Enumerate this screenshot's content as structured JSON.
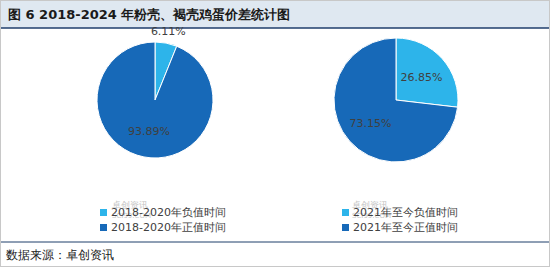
{
  "title": "图 6 2018-2024 年粉壳、褐壳鸡蛋价差统计图",
  "source": "数据来源：卓创资讯",
  "chart_data": [
    {
      "type": "pie",
      "categories": [
        "2018-2020年负值时间",
        "2018-2020年正值时间"
      ],
      "values": [
        6.11,
        93.89
      ],
      "value_labels": [
        "6.11%",
        "93.89%"
      ],
      "colors": [
        "#2db4ea",
        "#1769b8"
      ],
      "data_labels": true,
      "legend": "bottom",
      "annotations": [
        "卓创资讯",
        "SCI99.COM"
      ]
    },
    {
      "type": "pie",
      "categories": [
        "2021年至今负值时间",
        "2021年至今正值时间"
      ],
      "values": [
        26.85,
        73.15
      ],
      "value_labels": [
        "26.85%",
        "73.15%"
      ],
      "colors": [
        "#2db4ea",
        "#1769b8"
      ],
      "data_labels": true,
      "legend": "bottom",
      "annotations": [
        "卓创资讯",
        "SCI99.COM"
      ]
    }
  ]
}
